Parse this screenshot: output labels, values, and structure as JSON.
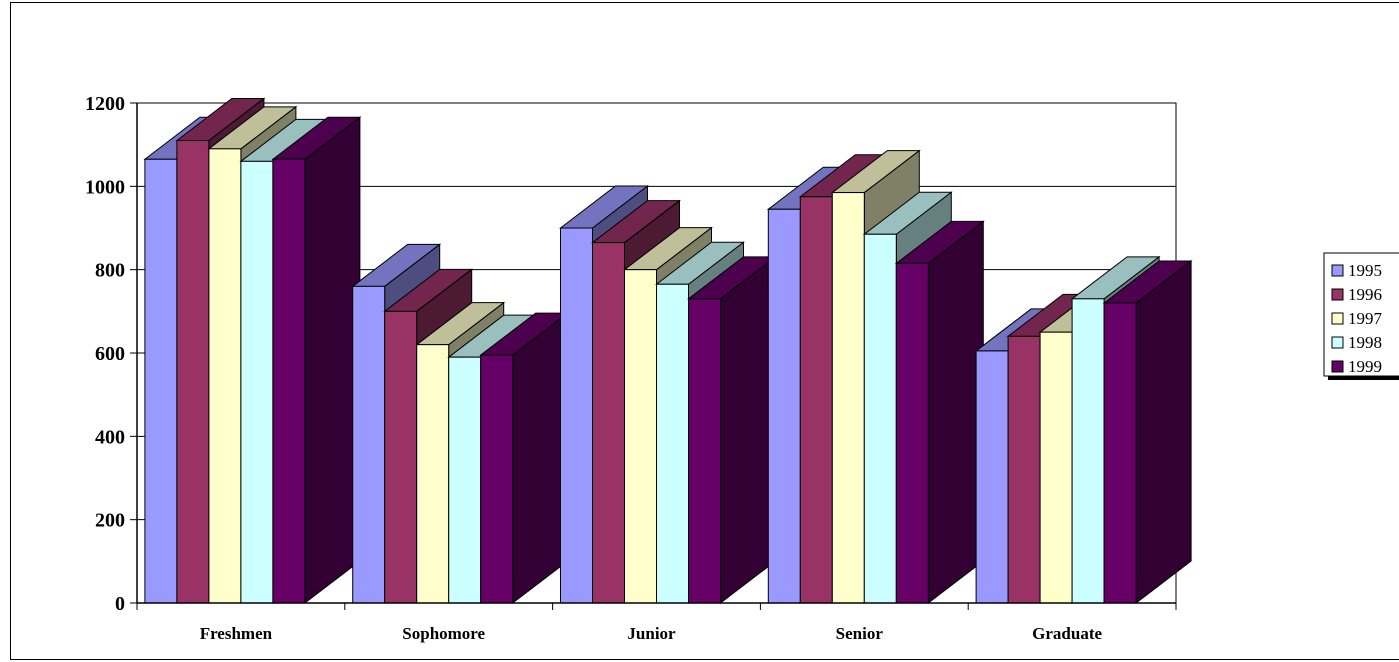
{
  "chart_data": {
    "type": "bar",
    "title": "",
    "xlabel": "",
    "ylabel": "",
    "categories": [
      "Freshmen",
      "Sophomore",
      "Junior",
      "Senior",
      "Graduate"
    ],
    "ylim": [
      0,
      1200
    ],
    "yticks": [
      0,
      200,
      400,
      600,
      800,
      1000,
      1200
    ],
    "grid": true,
    "legend_position": "right",
    "series": [
      {
        "name": "1995",
        "values": [
          1065,
          760,
          900,
          945,
          605
        ],
        "color": "#9999ff"
      },
      {
        "name": "1996",
        "values": [
          1110,
          700,
          865,
          975,
          640
        ],
        "color": "#993366"
      },
      {
        "name": "1997",
        "values": [
          1090,
          620,
          800,
          985,
          650
        ],
        "color": "#ffffcc"
      },
      {
        "name": "1998",
        "values": [
          1060,
          590,
          765,
          885,
          730
        ],
        "color": "#ccffff"
      },
      {
        "name": "1999",
        "values": [
          1065,
          595,
          730,
          815,
          720
        ],
        "color": "#660066"
      }
    ]
  }
}
